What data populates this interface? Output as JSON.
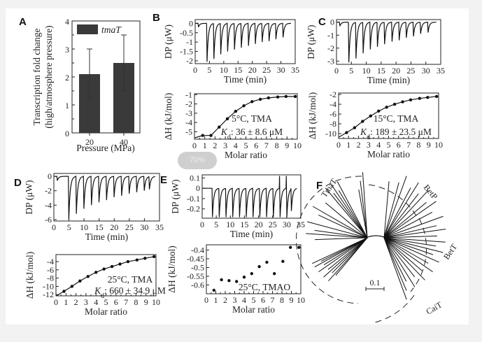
{
  "panels": [
    "A",
    "B",
    "C",
    "D",
    "E",
    "F"
  ],
  "zoom_badge": "70%",
  "chart_data": [
    {
      "id": "A",
      "type": "bar",
      "categories": [
        "20",
        "40"
      ],
      "values": [
        2.1,
        2.5
      ],
      "errors": [
        [
          1.2,
          3.0
        ],
        [
          1.5,
          3.5
        ]
      ],
      "legend": "tmaT",
      "xlabel": "Pressure (MPa)",
      "ylabel": [
        "Transcription fold change",
        "(high/atmosphere pressure)"
      ],
      "ylim": [
        0,
        4
      ],
      "yticks": [
        "0",
        "1",
        "2",
        "3",
        "4"
      ],
      "color": "#3a3a3a"
    },
    {
      "id": "B-trace",
      "type": "line",
      "xlabel": "Time (min)",
      "ylabel": "DP (μW)",
      "xlim": [
        0,
        35
      ],
      "ylim": [
        -2.15,
        0.2
      ],
      "xticks": [
        "0",
        "5",
        "10",
        "15",
        "20",
        "25",
        "30",
        "35"
      ],
      "yticks": [
        "0",
        "-0.5",
        "-1",
        "-1.5",
        "-2"
      ],
      "injection_times": [
        1,
        4,
        6.4,
        8.8,
        11.2,
        13.6,
        16,
        18.5,
        20.9,
        23.3,
        25.7,
        28.1,
        30.6
      ],
      "peak_values": [
        -0.2,
        -2.05,
        -1.9,
        -1.65,
        -1.5,
        -1.4,
        -1.3,
        -1.2,
        -1.1,
        -1.0,
        -0.95,
        -0.85,
        -0.75
      ]
    },
    {
      "id": "B-isotherm",
      "type": "scatter",
      "xlabel": "Molar ratio",
      "ylabel": "ΔH (kJ/mol)",
      "xlim": [
        0,
        10
      ],
      "ylim": [
        -5.8,
        -0.9
      ],
      "xticks": [
        "0",
        "1",
        "2",
        "3",
        "4",
        "5",
        "6",
        "7",
        "8",
        "9",
        "10"
      ],
      "yticks": [
        "-1",
        "-2",
        "-3",
        "-4",
        "-5"
      ],
      "x": [
        0.8,
        1.6,
        2.4,
        3.2,
        4.0,
        4.8,
        5.6,
        6.4,
        7.2,
        8.1,
        8.9,
        9.8
      ],
      "y": [
        -5.4,
        -5.4,
        -4.5,
        -3.6,
        -2.8,
        -2.2,
        -1.75,
        -1.5,
        -1.35,
        -1.25,
        -1.2,
        -1.2
      ],
      "fit": true,
      "condition": "5°C, TMA",
      "kd_symbol": "K",
      "kd_sub": "d",
      "kd_value": ": 36 ± 8.6 μM"
    },
    {
      "id": "C-trace",
      "type": "line",
      "xlabel": "Time (min)",
      "ylabel": "DP (μW)",
      "xlim": [
        0,
        35
      ],
      "ylim": [
        -3.25,
        0.2
      ],
      "xticks": [
        "0",
        "5",
        "10",
        "15",
        "20",
        "25",
        "30",
        "35"
      ],
      "yticks": [
        "0",
        "-1",
        "-2",
        "-3"
      ],
      "injection_times": [
        1,
        4,
        6.4,
        8.8,
        11.2,
        13.6,
        16,
        18.5,
        20.9,
        23.3,
        25.7,
        28.1,
        30.6
      ],
      "peak_values": [
        -0.3,
        -3.1,
        -2.8,
        -2.4,
        -2.1,
        -1.9,
        -1.7,
        -1.5,
        -1.4,
        -1.2,
        -1.1,
        -0.9,
        -0.8
      ]
    },
    {
      "id": "C-isotherm",
      "type": "scatter",
      "xlabel": "Molar ratio",
      "ylabel": "ΔH (kJ/mol)",
      "xlim": [
        0,
        10
      ],
      "ylim": [
        -11,
        -1.7
      ],
      "xticks": [
        "0",
        "1",
        "2",
        "3",
        "4",
        "5",
        "6",
        "7",
        "8",
        "9",
        "10"
      ],
      "yticks": [
        "-2",
        "-4",
        "-6",
        "-8",
        "-10"
      ],
      "x": [
        0.8,
        1.6,
        2.4,
        3.2,
        4.0,
        4.8,
        5.6,
        6.4,
        7.2,
        8.1,
        8.9,
        9.8
      ],
      "y": [
        -9.8,
        -8.8,
        -7.5,
        -6.4,
        -5.4,
        -4.6,
        -4.0,
        -3.5,
        -3.1,
        -2.8,
        -2.6,
        -2.4
      ],
      "fit": true,
      "condition": "15°C, TMA",
      "kd_symbol": "K",
      "kd_sub": "d",
      "kd_value": ": 189 ± 23.5 μM"
    },
    {
      "id": "D-trace",
      "type": "line",
      "xlabel": "Time (min)",
      "ylabel": "DP (μW)",
      "xlim": [
        0,
        35
      ],
      "ylim": [
        -6.2,
        0.4
      ],
      "xticks": [
        "0",
        "5",
        "10",
        "15",
        "20",
        "25",
        "30",
        "35"
      ],
      "yticks": [
        "0",
        "-2",
        "-4",
        "-6"
      ],
      "injection_times": [
        1,
        4.8,
        7.3,
        9.8,
        12.3,
        14.8,
        17.3,
        19.8,
        22.3,
        24.8,
        27.3,
        29.8,
        31.5
      ],
      "peak_values": [
        -0.6,
        -6.0,
        -5.2,
        -4.5,
        -4.0,
        -3.6,
        -3.3,
        -2.9,
        -2.7,
        -2.4,
        -2.2,
        -2.0,
        -1.8
      ]
    },
    {
      "id": "D-isotherm",
      "type": "scatter",
      "xlabel": "Molar ratio",
      "ylabel": "ΔH (kJ/mol)",
      "xlim": [
        0,
        10
      ],
      "ylim": [
        -12.3,
        -2.3
      ],
      "xticks": [
        "0",
        "1",
        "2",
        "3",
        "4",
        "5",
        "6",
        "7",
        "8",
        "9",
        "10"
      ],
      "yticks": [
        "-4",
        "-6",
        "-8",
        "-10",
        "-12"
      ],
      "x": [
        0.8,
        1.6,
        2.4,
        3.2,
        4.0,
        4.8,
        5.6,
        6.4,
        7.2,
        8.1,
        8.9,
        9.8
      ],
      "y": [
        -11.2,
        -10,
        -8.7,
        -7.6,
        -6.6,
        -5.8,
        -5.2,
        -4.6,
        -4.0,
        -3.6,
        -3.2,
        -2.8
      ],
      "fit": true,
      "condition": "25°C, TMA",
      "kd_symbol": "K",
      "kd_sub": "d",
      "kd_value": ": 660 ± 34.9 μM"
    },
    {
      "id": "E-trace",
      "type": "line",
      "xlabel": "Time (min)",
      "ylabel": "DP (μW)",
      "xlim": [
        0,
        35
      ],
      "ylim": [
        -0.29,
        0.13
      ],
      "xticks": [
        "0",
        "5",
        "10",
        "15",
        "20",
        "25",
        "30",
        "35"
      ],
      "yticks": [
        "0.1",
        "0",
        "-0.1",
        "-0.2"
      ],
      "injection_times": [
        3.5,
        5.9,
        8.3,
        10.7,
        13.1,
        15.5,
        17.9,
        20.3,
        22.7,
        25.1,
        27.5,
        29.9,
        31.5
      ],
      "peak_values": [
        -0.28,
        -0.28,
        -0.28,
        -0.28,
        -0.28,
        -0.28,
        -0.28,
        -0.28,
        -0.28,
        -0.28,
        -0.28,
        -0.28,
        -0.22
      ]
    },
    {
      "id": "E-isotherm",
      "type": "scatter",
      "xlabel": "Molar ratio",
      "ylabel": "ΔH (kJ/mol)",
      "xlim": [
        0,
        10
      ],
      "ylim": [
        -0.65,
        -0.37
      ],
      "xticks": [
        "0",
        "1",
        "2",
        "3",
        "4",
        "5",
        "6",
        "7",
        "8",
        "9",
        "10"
      ],
      "yticks": [
        "-0.4",
        "-0.45",
        "-0.5",
        "-0.55",
        "-0.6"
      ],
      "x": [
        0.8,
        1.6,
        2.4,
        3.2,
        4.0,
        4.8,
        5.6,
        6.4,
        7.2,
        8.1,
        8.9,
        9.8
      ],
      "y": [
        -0.63,
        -0.57,
        -0.575,
        -0.58,
        -0.555,
        -0.535,
        -0.495,
        -0.47,
        -0.535,
        -0.465,
        -0.385,
        -0.385
      ],
      "fit": false,
      "condition": "25°C, TMAO"
    },
    {
      "id": "F",
      "type": "tree",
      "clades": [
        "TmaT",
        "BetP",
        "BetT",
        "CaiT"
      ],
      "scale_label": "0.1"
    }
  ]
}
